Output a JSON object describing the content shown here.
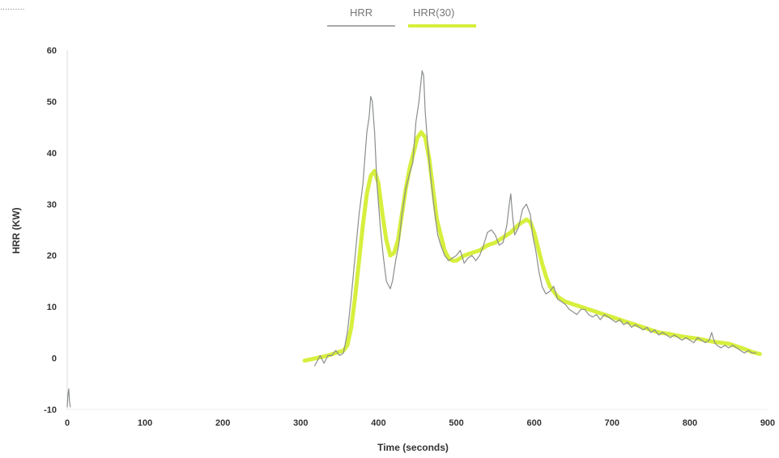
{
  "top_fragment": "..........",
  "chart_data": {
    "type": "line",
    "xlabel": "Time (seconds)",
    "ylabel": "HRR (KW)",
    "xlim": [
      0,
      900
    ],
    "ylim": [
      -10,
      60
    ],
    "xticks": [
      "0",
      "100",
      "200",
      "300",
      "400",
      "500",
      "600",
      "700",
      "800",
      "900"
    ],
    "yticks": [
      "-10",
      "0",
      "10",
      "20",
      "30",
      "40",
      "50",
      "60"
    ],
    "legend_position": "top-center",
    "series": [
      {
        "name": "HRR",
        "color": "#8a8f8a",
        "x": [
          0,
          1,
          2,
          3,
          4,
          318,
          325,
          330,
          335,
          340,
          345,
          350,
          355,
          360,
          365,
          370,
          375,
          380,
          385,
          388,
          390,
          392,
          395,
          398,
          402,
          406,
          410,
          415,
          418,
          422,
          426,
          430,
          435,
          440,
          444,
          448,
          452,
          456,
          458,
          460,
          464,
          470,
          476,
          480,
          485,
          490,
          495,
          500,
          505,
          510,
          515,
          520,
          525,
          530,
          535,
          540,
          545,
          550,
          555,
          560,
          565,
          568,
          570,
          572,
          575,
          580,
          585,
          590,
          595,
          598,
          602,
          606,
          610,
          615,
          620,
          625,
          630,
          635,
          640,
          645,
          650,
          655,
          660,
          665,
          670,
          675,
          680,
          685,
          690,
          695,
          700,
          705,
          710,
          715,
          720,
          725,
          730,
          735,
          740,
          745,
          750,
          755,
          760,
          765,
          770,
          775,
          780,
          785,
          790,
          795,
          800,
          805,
          810,
          815,
          820,
          825,
          828,
          830,
          832,
          835,
          840,
          845,
          850,
          855,
          860,
          865,
          870,
          875,
          880,
          885
        ],
        "y": [
          -9.5,
          -7,
          -6,
          -8.5,
          -9.5,
          -1.5,
          0.5,
          -1,
          0.5,
          0.5,
          1.5,
          0.5,
          1,
          5,
          12,
          20,
          28,
          34,
          44,
          47,
          51,
          50,
          44,
          34,
          26,
          20,
          15,
          13.5,
          15,
          19,
          22,
          28,
          33,
          36,
          38,
          46,
          50,
          56,
          55,
          48,
          40,
          31,
          24,
          22,
          20,
          19,
          19.5,
          20,
          21,
          18.5,
          19.5,
          20,
          19,
          20,
          22,
          24.5,
          25,
          24,
          22,
          22.5,
          26,
          30,
          32,
          28,
          24,
          25.5,
          29,
          30,
          28,
          24,
          21,
          17,
          14,
          12.5,
          13,
          14,
          11.5,
          11,
          10.5,
          9.5,
          9,
          8.5,
          9.5,
          9.5,
          8.5,
          8,
          8.5,
          7.5,
          8.5,
          8,
          7.5,
          7,
          7.5,
          6.5,
          7,
          6,
          6.5,
          6,
          5.5,
          6,
          5,
          5.5,
          4.5,
          5,
          4.5,
          4,
          4.5,
          4,
          3.5,
          4,
          3.5,
          3,
          4,
          3.5,
          3,
          3.5,
          5,
          4,
          3,
          2.5,
          2,
          2.5,
          2,
          2.5,
          2,
          1.5,
          1,
          1.5,
          1,
          1
        ]
      },
      {
        "name": "HRR(30)",
        "color": "#d7ef3d",
        "x": [
          305,
          320,
          335,
          345,
          355,
          360,
          365,
          370,
          375,
          380,
          385,
          390,
          395,
          400,
          405,
          410,
          415,
          420,
          425,
          430,
          435,
          440,
          445,
          450,
          455,
          460,
          465,
          470,
          475,
          480,
          485,
          490,
          495,
          500,
          505,
          510,
          520,
          530,
          540,
          550,
          560,
          570,
          580,
          590,
          595,
          600,
          605,
          610,
          615,
          620,
          630,
          640,
          650,
          660,
          670,
          680,
          690,
          700,
          710,
          720,
          730,
          740,
          750,
          760,
          770,
          780,
          790,
          800,
          810,
          820,
          830,
          840,
          850,
          860,
          870,
          880,
          890
        ],
        "y": [
          -0.5,
          0,
          0.5,
          1,
          1.5,
          2.5,
          6,
          12,
          19,
          26,
          32,
          35.5,
          36.5,
          34,
          28,
          23,
          20,
          20.5,
          23,
          28,
          33,
          37,
          40,
          43,
          44,
          43,
          39,
          33,
          27,
          24,
          21,
          19.5,
          19,
          19,
          19.5,
          20,
          20.5,
          21,
          22,
          22.5,
          23.5,
          24.5,
          26,
          27,
          26.5,
          24.5,
          21.5,
          18.5,
          16,
          14,
          12,
          11,
          10.5,
          10,
          9.5,
          9,
          8.5,
          8,
          7.5,
          7,
          6.5,
          6,
          5.5,
          5,
          4.8,
          4.5,
          4.2,
          4,
          3.8,
          3.5,
          3.2,
          3,
          2.8,
          2.3,
          1.8,
          1.2,
          0.8
        ]
      }
    ]
  }
}
